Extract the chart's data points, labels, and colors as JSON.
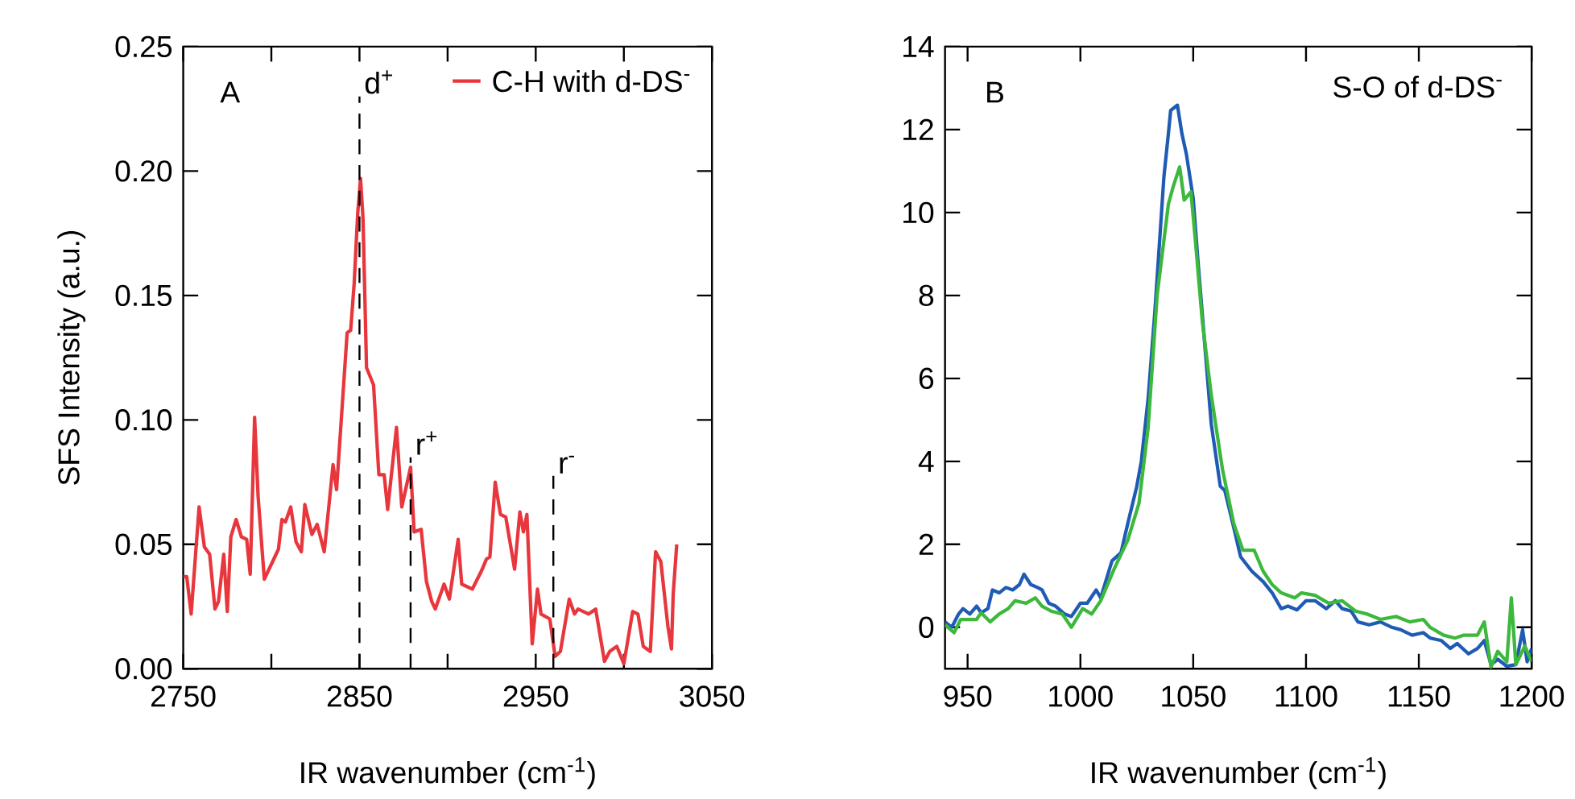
{
  "chart_data": [
    {
      "type": "line",
      "title": "A",
      "xlabel": "IR wavenumber (cm$^{-1}$)",
      "ylabel": "SFS Intensity (a.u.)",
      "xlim": [
        2750,
        3050
      ],
      "xticks": [
        2750,
        {
          "value": 2800,
          "label": null
        },
        2850,
        {
          "value": 2900,
          "label": null
        },
        2950,
        {
          "value": 3000,
          "label": null
        },
        3050
      ],
      "ylim": [
        0,
        0.25
      ],
      "yticks": [
        {
          "value": 0,
          "label": "0.00"
        },
        0.05,
        {
          "value": 0.1,
          "label": "0.10"
        },
        0.15,
        {
          "value": 0.2,
          "label": "0.20"
        },
        0.25
      ],
      "legend": "top right",
      "line_style": "solid",
      "marker": "none",
      "ref_lines": [
        {
          "axis": "x",
          "value": 2850,
          "label": "d$^{+}$",
          "color": "#000000",
          "line_style": "dashed"
        },
        {
          "axis": "x",
          "value": 2879,
          "label": "r$^{+}$",
          "color": "#000000",
          "line_style": "dashed"
        },
        {
          "axis": "x",
          "value": 2960,
          "label": "r$^{-}$",
          "color": "#000000",
          "line_style": "dashed"
        }
      ],
      "series": [
        {
          "name": "C-H with d-DS$^{-}$",
          "color": "#e8363d",
          "x": [
            2750,
            2752,
            2754.5,
            2759,
            2762,
            2765,
            2768,
            2770,
            2773,
            2775,
            2777,
            2780,
            2783,
            2786,
            2788,
            2790.5,
            2792.5,
            2796,
            2802,
            2804,
            2806,
            2808,
            2811,
            2814,
            2817,
            2819,
            2823,
            2826,
            2830,
            2835,
            2837,
            2843,
            2845,
            2847,
            2849,
            2850.6,
            2852,
            2854,
            2858,
            2861,
            2864,
            2866,
            2871,
            2874,
            2879,
            2881,
            2885,
            2888,
            2891,
            2893,
            2898,
            2901,
            2906,
            2908,
            2914,
            2919,
            2922,
            2924,
            2927,
            2930,
            2933,
            2938,
            2941,
            2943,
            2945,
            2948,
            2951,
            2953,
            2958,
            2961,
            2964,
            2969,
            2972,
            2974,
            2980,
            2984,
            2989,
            2992,
            2996,
            3000,
            3005,
            3008,
            3011,
            3015,
            3018,
            3021,
            3025,
            3027,
            3028,
            3030
          ],
          "values": [
            0.037,
            0.037,
            0.022,
            0.065,
            0.049,
            0.046,
            0.024,
            0.027,
            0.046,
            0.023,
            0.053,
            0.06,
            0.053,
            0.052,
            0.038,
            0.101,
            0.069,
            0.036,
            0.045,
            0.048,
            0.06,
            0.059,
            0.065,
            0.051,
            0.047,
            0.066,
            0.054,
            0.058,
            0.047,
            0.082,
            0.072,
            0.135,
            0.136,
            0.155,
            0.183,
            0.197,
            0.181,
            0.121,
            0.114,
            0.078,
            0.078,
            0.064,
            0.097,
            0.065,
            0.081,
            0.055,
            0.056,
            0.035,
            0.027,
            0.024,
            0.034,
            0.028,
            0.052,
            0.034,
            0.032,
            0.039,
            0.044,
            0.045,
            0.075,
            0.062,
            0.061,
            0.04,
            0.063,
            0.055,
            0.062,
            0.01,
            0.032,
            0.022,
            0.02,
            0.005,
            0.007,
            0.028,
            0.022,
            0.024,
            0.022,
            0.024,
            0.003,
            0.007,
            0.009,
            0.002,
            0.023,
            0.022,
            0.009,
            0.007,
            0.047,
            0.043,
            0.017,
            0.008,
            0.03,
            0.05
          ]
        }
      ]
    },
    {
      "type": "line",
      "title": "B",
      "xlabel": "IR wavenumber (cm$^{-1}$)",
      "legend_title": "S-O of d-DS$^{-}$",
      "xlim": [
        940,
        1200
      ],
      "xticks": [
        950,
        1000,
        1050,
        1100,
        1150,
        1200
      ],
      "ylim": [
        -1,
        14
      ],
      "yticks": [
        0,
        2,
        4,
        6,
        8,
        10,
        12,
        14
      ],
      "line_style": "solid",
      "marker": "none",
      "series": [
        {
          "color": "#1f5bb5",
          "x": [
            940,
            943,
            946,
            948,
            951,
            954,
            956,
            959,
            961,
            964,
            967,
            970,
            973,
            975,
            978,
            981,
            983,
            986,
            989,
            993,
            996,
            1000,
            1003,
            1007,
            1009,
            1014,
            1018,
            1021,
            1025,
            1027,
            1030,
            1033,
            1037,
            1039,
            1040,
            1043,
            1045,
            1047,
            1050,
            1052,
            1055,
            1058,
            1062,
            1064,
            1068,
            1071,
            1076,
            1081,
            1085,
            1089,
            1092,
            1096,
            1100,
            1104,
            1109,
            1113,
            1116,
            1120,
            1123,
            1128,
            1133,
            1138,
            1142,
            1147,
            1152,
            1155,
            1160,
            1164,
            1167,
            1172,
            1176,
            1179,
            1182,
            1185,
            1189,
            1193,
            1196,
            1198,
            1200
          ],
          "values": [
            0.13,
            0,
            0.32,
            0.45,
            0.32,
            0.51,
            0.35,
            0.45,
            0.9,
            0.83,
            0.96,
            0.9,
            1.03,
            1.28,
            1.03,
            0.96,
            0.9,
            0.58,
            0.51,
            0.32,
            0.26,
            0.58,
            0.58,
            0.9,
            0.71,
            1.6,
            1.8,
            2.5,
            3.4,
            4.0,
            5.5,
            7.6,
            10.85,
            11.9,
            12.46,
            12.59,
            11.9,
            11.4,
            10.34,
            8.9,
            6.9,
            4.9,
            3.4,
            3.3,
            2.4,
            1.7,
            1.35,
            1.1,
            0.83,
            0.45,
            0.51,
            0.42,
            0.64,
            0.64,
            0.45,
            0.64,
            0.45,
            0.39,
            0.13,
            0.06,
            0.13,
            0,
            -0.06,
            -0.19,
            -0.13,
            -0.26,
            -0.32,
            -0.51,
            -0.39,
            -0.64,
            -0.51,
            -0.32,
            -0.9,
            -0.77,
            -0.94,
            -0.9,
            -0.06,
            -0.83,
            -0.51
          ]
        },
        {
          "color": "#3cb83c",
          "x": [
            940,
            944,
            947,
            954,
            956,
            960,
            964,
            968,
            971,
            976,
            980,
            983,
            987,
            992,
            996,
            1001,
            1005,
            1009,
            1015,
            1021,
            1026,
            1030,
            1034,
            1039,
            1041,
            1044,
            1046,
            1049,
            1051,
            1054,
            1058,
            1063,
            1068,
            1072,
            1077,
            1081,
            1085,
            1089,
            1095,
            1098,
            1104,
            1110,
            1116,
            1122,
            1127,
            1133,
            1140,
            1146,
            1152,
            1155,
            1161,
            1166,
            1170,
            1176,
            1179,
            1182,
            1185,
            1189,
            1191,
            1193,
            1197,
            1200
          ],
          "values": [
            0.06,
            -0.13,
            0.19,
            0.19,
            0.35,
            0.13,
            0.32,
            0.45,
            0.64,
            0.58,
            0.71,
            0.51,
            0.39,
            0.32,
            0,
            0.45,
            0.32,
            0.64,
            1.41,
            2.1,
            3.0,
            4.8,
            8.0,
            10.2,
            10.6,
            11.1,
            10.3,
            10.5,
            9.3,
            7.4,
            5.6,
            3.8,
            2.5,
            1.86,
            1.86,
            1.35,
            1.03,
            0.83,
            0.71,
            0.83,
            0.77,
            0.58,
            0.64,
            0.39,
            0.32,
            0.19,
            0.26,
            0.13,
            0.19,
            0,
            -0.19,
            -0.26,
            -0.19,
            -0.19,
            0.13,
            -0.96,
            -0.58,
            -0.83,
            0.71,
            -0.9,
            -0.45,
            -0.83
          ]
        }
      ]
    }
  ]
}
